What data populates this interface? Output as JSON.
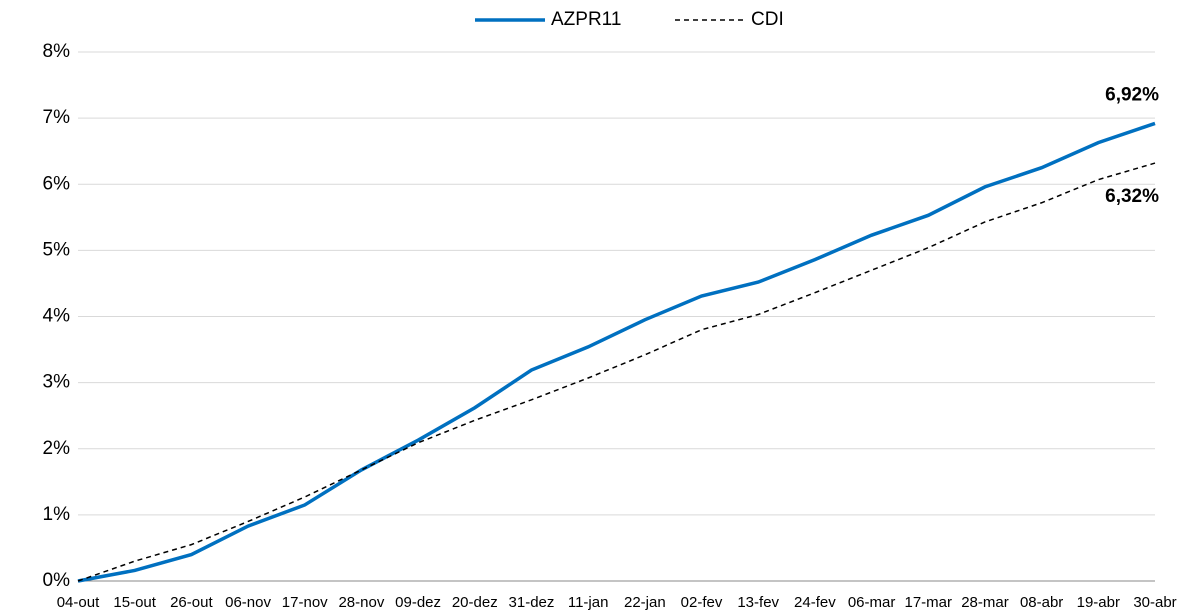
{
  "chart_data": {
    "type": "line",
    "categories": [
      "04-out",
      "15-out",
      "26-out",
      "06-nov",
      "17-nov",
      "28-nov",
      "09-dez",
      "20-dez",
      "31-dez",
      "11-jan",
      "22-jan",
      "02-fev",
      "13-fev",
      "24-fev",
      "06-mar",
      "17-mar",
      "28-mar",
      "08-abr",
      "19-abr",
      "30-abr"
    ],
    "series": [
      {
        "name": "AZPR11",
        "color": "#0070c0",
        "dash": false,
        "values": [
          0,
          0.16,
          0.4,
          0.83,
          1.15,
          1.68,
          2.13,
          2.62,
          3.19,
          3.54,
          3.95,
          4.31,
          4.52,
          4.86,
          5.23,
          5.53,
          5.96,
          6.25,
          6.63,
          6.92
        ],
        "value_labels": [
          null,
          null,
          null,
          null,
          null,
          null,
          null,
          null,
          null,
          null,
          null,
          null,
          null,
          null,
          null,
          null,
          null,
          null,
          null,
          "6,92%"
        ]
      },
      {
        "name": "CDI",
        "color": "#000000",
        "dash": true,
        "values": [
          0,
          0.3,
          0.55,
          0.9,
          1.27,
          1.68,
          2.09,
          2.43,
          2.74,
          3.07,
          3.42,
          3.8,
          4.03,
          4.36,
          4.7,
          5.04,
          5.43,
          5.72,
          6.07,
          6.32
        ],
        "value_labels": [
          null,
          null,
          null,
          null,
          null,
          null,
          null,
          null,
          null,
          null,
          null,
          null,
          null,
          null,
          null,
          null,
          null,
          null,
          null,
          "6,32%"
        ]
      }
    ],
    "ylim": [
      0,
      8
    ],
    "yticks": [
      {
        "value": 0,
        "label": "0%"
      },
      {
        "value": 1,
        "label": "1%"
      },
      {
        "value": 2,
        "label": "2%"
      },
      {
        "value": 3,
        "label": "3%"
      },
      {
        "value": 4,
        "label": "4%"
      },
      {
        "value": 5,
        "label": "5%"
      },
      {
        "value": 6,
        "label": "6%"
      },
      {
        "value": 7,
        "label": "7%"
      },
      {
        "value": 8,
        "label": "8%"
      }
    ],
    "grid": true,
    "legend": "top"
  }
}
